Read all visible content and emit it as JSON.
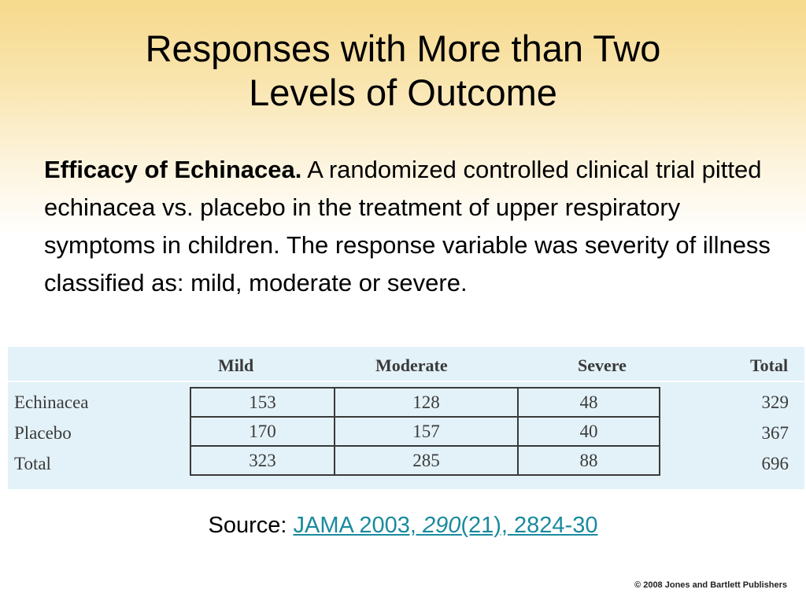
{
  "slide": {
    "title_line1": "Responses with More than Two",
    "title_line2": "Levels of Outcome",
    "body_bold": "Efficacy of Echinacea.",
    "body_text": " A randomized controlled clinical trial pitted echinacea vs. placebo in the treatment of upper respiratory symptoms in children. The response variable was severity of illness classified as: mild, moderate or severe."
  },
  "table": {
    "headers": [
      "Mild",
      "Moderate",
      "Severe",
      "Total"
    ],
    "rows": [
      {
        "label": "Echinacea",
        "values": [
          "153",
          "128",
          "48"
        ],
        "total": "329"
      },
      {
        "label": "Placebo",
        "values": [
          "170",
          "157",
          "40"
        ],
        "total": "367"
      },
      {
        "label": "Total",
        "values": [
          "323",
          "285",
          "88"
        ],
        "total": "696"
      }
    ]
  },
  "source": {
    "prefix": "Source: ",
    "link_part1": "JAMA 2003, ",
    "link_volume": "290",
    "link_part2": "(21), 2824-30"
  },
  "copyright": "© 2008 Jones and Bartlett Publishers",
  "colors": {
    "link": "#1a8a9e",
    "table_panel": "#e3f2f9",
    "header_gradient_top": "#f6d98c"
  }
}
